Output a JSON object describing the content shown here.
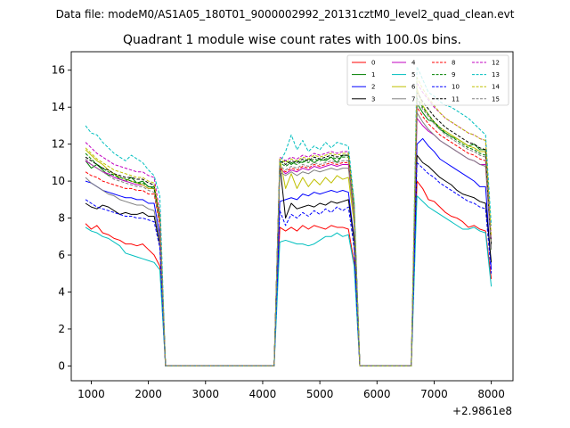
{
  "suptitle": "Data file: modeM0/AS1A05_180T01_9000002992_20131cztM0_level2_quad_clean.evt",
  "chart_data": {
    "type": "line",
    "title": "Quadrant 1 module wise count rates with 100.0s bins.",
    "xlabel": "",
    "ylabel": "",
    "offset_label": "+2.9861e8",
    "xlim": [
      650,
      8380
    ],
    "ylim": [
      -0.8,
      17.0
    ],
    "xticks": [
      1000,
      2000,
      3000,
      4000,
      5000,
      6000,
      7000,
      8000
    ],
    "yticks": [
      0,
      2,
      4,
      6,
      8,
      10,
      12,
      14,
      16
    ],
    "legend_position": "top-right",
    "legend_columns": 4,
    "segments": [
      {
        "x_start": 900,
        "x_end": 2200,
        "step": 100
      },
      {
        "x_start": 4300,
        "x_end": 5600,
        "step": 100
      },
      {
        "x_start": 6700,
        "x_end": 8000,
        "step": 100
      }
    ],
    "gaps": [
      {
        "x_start": 2300,
        "x_end": 4200,
        "value": 0
      },
      {
        "x_start": 5700,
        "x_end": 6600,
        "value": 0
      }
    ],
    "series": [
      {
        "name": "0",
        "color": "#ff0000",
        "dash": "solid",
        "segments": [
          [
            7.7,
            7.4,
            7.6,
            7.2,
            7.1,
            6.9,
            6.8,
            6.6,
            6.6,
            6.5,
            6.6,
            6.3,
            6.0,
            5.4
          ],
          [
            7.5,
            7.3,
            7.5,
            7.3,
            7.6,
            7.4,
            7.6,
            7.5,
            7.4,
            7.6,
            7.5,
            7.5,
            7.4,
            5.6
          ],
          [
            10.0,
            9.6,
            9.0,
            8.9,
            8.6,
            8.3,
            8.1,
            8.0,
            7.8,
            7.5,
            7.6,
            7.4,
            7.3,
            4.7
          ]
        ]
      },
      {
        "name": "1",
        "color": "#008000",
        "dash": "solid",
        "segments": [
          [
            11.1,
            10.7,
            10.9,
            10.6,
            10.3,
            10.4,
            10.1,
            10.0,
            10.2,
            9.9,
            10.0,
            9.7,
            9.7,
            8.0
          ],
          [
            11.0,
            11.1,
            10.9,
            11.1,
            11.0,
            11.2,
            11.0,
            11.2,
            11.1,
            11.3,
            11.0,
            11.4,
            11.4,
            8.8
          ],
          [
            14.2,
            13.7,
            13.3,
            13.2,
            12.8,
            12.6,
            12.4,
            12.3,
            12.1,
            11.9,
            12.0,
            11.7,
            11.7,
            6.3
          ]
        ]
      },
      {
        "name": "2",
        "color": "#0000ff",
        "dash": "solid",
        "segments": [
          [
            10.0,
            9.9,
            9.7,
            9.5,
            9.4,
            9.3,
            9.2,
            9.1,
            9.1,
            9.0,
            9.0,
            8.8,
            8.8,
            7.1
          ],
          [
            8.9,
            9.0,
            9.1,
            9.0,
            9.3,
            9.2,
            9.4,
            9.3,
            9.4,
            9.5,
            9.4,
            9.5,
            9.4,
            6.9
          ],
          [
            12.0,
            12.3,
            11.9,
            11.6,
            11.2,
            11.0,
            10.8,
            10.6,
            10.4,
            10.2,
            10.0,
            9.7,
            9.7,
            5.2
          ]
        ]
      },
      {
        "name": "3",
        "color": "#000000",
        "dash": "solid",
        "segments": [
          [
            8.8,
            8.6,
            8.5,
            8.7,
            8.6,
            8.4,
            8.2,
            8.3,
            8.2,
            8.2,
            8.3,
            8.1,
            8.1,
            6.6
          ],
          [
            10.9,
            8.0,
            8.8,
            8.5,
            8.6,
            8.7,
            8.6,
            8.8,
            8.7,
            8.9,
            8.8,
            8.9,
            9.0,
            6.8
          ],
          [
            11.4,
            11.0,
            10.8,
            10.5,
            10.2,
            10.0,
            9.8,
            9.5,
            9.3,
            9.2,
            9.1,
            8.9,
            8.8,
            5.6
          ]
        ]
      },
      {
        "name": "4",
        "color": "#c000c0",
        "dash": "solid",
        "segments": [
          [
            11.1,
            10.9,
            10.7,
            10.5,
            10.4,
            10.2,
            10.1,
            10.0,
            9.9,
            9.8,
            9.8,
            9.6,
            9.6,
            7.8
          ],
          [
            10.7,
            10.4,
            10.6,
            10.5,
            10.7,
            10.6,
            10.8,
            10.7,
            10.8,
            10.9,
            10.8,
            10.9,
            10.9,
            8.2
          ],
          [
            13.4,
            13.0,
            12.7,
            12.5,
            12.2,
            12.0,
            11.8,
            11.6,
            11.4,
            11.2,
            11.1,
            10.9,
            10.9,
            6.4
          ]
        ]
      },
      {
        "name": "5",
        "color": "#00bfbf",
        "dash": "solid",
        "segments": [
          [
            7.5,
            7.3,
            7.2,
            7.0,
            6.9,
            6.7,
            6.5,
            6.1,
            6.0,
            5.9,
            5.8,
            5.7,
            5.6,
            5.2
          ],
          [
            6.7,
            6.8,
            6.7,
            6.6,
            6.6,
            6.5,
            6.6,
            6.8,
            7.0,
            7.0,
            7.2,
            7.0,
            7.1,
            5.4
          ],
          [
            9.2,
            8.9,
            8.6,
            8.4,
            8.2,
            8.0,
            7.8,
            7.6,
            7.4,
            7.4,
            7.5,
            7.3,
            7.2,
            4.3
          ]
        ]
      },
      {
        "name": "6",
        "color": "#bfbf00",
        "dash": "solid",
        "segments": [
          [
            11.7,
            11.4,
            11.1,
            10.9,
            10.6,
            10.4,
            10.2,
            10.1,
            10.0,
            9.9,
            9.8,
            9.6,
            9.6,
            7.9
          ],
          [
            11.2,
            9.6,
            10.4,
            9.6,
            10.2,
            9.7,
            10.1,
            9.8,
            10.2,
            9.9,
            10.3,
            10.1,
            10.2,
            7.7
          ],
          [
            15.0,
            14.1,
            13.6,
            13.2,
            12.9,
            12.7,
            12.5,
            12.3,
            12.1,
            11.9,
            11.8,
            11.6,
            11.6,
            6.5
          ]
        ]
      },
      {
        "name": "7",
        "color": "#808080",
        "dash": "solid",
        "segments": [
          [
            10.2,
            9.9,
            9.7,
            9.5,
            9.3,
            9.2,
            9.0,
            8.9,
            8.8,
            8.7,
            8.7,
            8.5,
            8.4,
            6.8
          ],
          [
            10.5,
            10.3,
            10.5,
            10.3,
            10.5,
            10.4,
            10.6,
            10.5,
            10.6,
            10.7,
            10.6,
            10.7,
            10.7,
            8.0
          ],
          [
            13.7,
            13.2,
            12.8,
            12.5,
            12.2,
            12.0,
            11.8,
            11.6,
            11.4,
            11.2,
            11.1,
            10.9,
            10.8,
            6.3
          ]
        ]
      },
      {
        "name": "8",
        "color": "#ff0000",
        "dash": "dashed",
        "segments": [
          [
            10.5,
            10.3,
            10.2,
            10.0,
            9.9,
            9.8,
            9.7,
            9.6,
            9.6,
            9.5,
            9.5,
            9.3,
            9.3,
            7.6
          ],
          [
            10.7,
            10.5,
            10.7,
            10.6,
            10.8,
            10.7,
            10.9,
            10.8,
            10.9,
            11.0,
            10.9,
            11.0,
            11.0,
            8.3
          ],
          [
            14.0,
            13.5,
            13.1,
            12.8,
            12.5,
            12.3,
            12.1,
            11.9,
            11.7,
            11.5,
            11.4,
            11.2,
            11.1,
            6.4
          ]
        ]
      },
      {
        "name": "9",
        "color": "#008000",
        "dash": "dashed",
        "segments": [
          [
            11.5,
            11.2,
            10.9,
            10.7,
            10.5,
            10.3,
            10.2,
            10.1,
            10.0,
            9.9,
            9.9,
            9.7,
            9.6,
            7.9
          ],
          [
            11.0,
            10.8,
            11.0,
            10.9,
            11.1,
            11.0,
            11.2,
            11.1,
            11.2,
            11.3,
            11.2,
            11.3,
            11.3,
            8.5
          ],
          [
            14.5,
            14.0,
            13.6,
            13.2,
            12.9,
            12.6,
            12.4,
            12.2,
            12.0,
            11.8,
            11.7,
            11.5,
            11.4,
            6.5
          ]
        ]
      },
      {
        "name": "10",
        "color": "#0000ff",
        "dash": "dashed",
        "segments": [
          [
            9.0,
            8.8,
            8.6,
            8.5,
            8.4,
            8.3,
            8.2,
            8.1,
            8.1,
            8.0,
            8.0,
            7.9,
            7.8,
            6.4
          ],
          [
            8.4,
            7.6,
            8.2,
            8.0,
            8.3,
            8.1,
            8.4,
            8.2,
            8.5,
            8.3,
            8.6,
            8.4,
            8.6,
            6.4
          ],
          [
            11.0,
            10.7,
            10.4,
            10.2,
            9.9,
            9.7,
            9.5,
            9.3,
            9.1,
            8.9,
            8.8,
            8.6,
            8.5,
            5.0
          ]
        ]
      },
      {
        "name": "11",
        "color": "#000000",
        "dash": "dashed",
        "segments": [
          [
            11.3,
            11.1,
            10.9,
            10.7,
            10.6,
            10.4,
            10.3,
            10.2,
            10.2,
            10.1,
            10.1,
            9.9,
            9.8,
            8.0
          ],
          [
            11.1,
            10.9,
            11.1,
            11.0,
            11.2,
            11.1,
            11.3,
            11.2,
            11.3,
            11.4,
            11.3,
            11.4,
            11.4,
            8.6
          ],
          [
            14.8,
            14.3,
            13.9,
            13.5,
            13.2,
            12.9,
            12.7,
            12.5,
            12.3,
            12.1,
            12.0,
            11.8,
            11.7,
            6.6
          ]
        ]
      },
      {
        "name": "12",
        "color": "#c000c0",
        "dash": "dashed",
        "segments": [
          [
            12.1,
            11.8,
            11.5,
            11.3,
            11.1,
            10.9,
            10.8,
            10.7,
            10.6,
            10.5,
            10.5,
            10.3,
            10.2,
            8.3
          ],
          [
            11.3,
            11.1,
            11.3,
            11.2,
            11.4,
            11.3,
            11.5,
            11.4,
            11.5,
            11.6,
            11.5,
            11.6,
            11.6,
            8.7
          ],
          [
            15.3,
            14.8,
            14.4,
            14.0,
            13.7,
            13.4,
            13.2,
            13.0,
            12.8,
            12.6,
            12.5,
            12.3,
            12.2,
            6.9
          ]
        ]
      },
      {
        "name": "13",
        "color": "#00bfbf",
        "dash": "dashed",
        "segments": [
          [
            13.0,
            12.6,
            12.5,
            12.1,
            11.8,
            11.5,
            11.3,
            11.1,
            11.4,
            11.2,
            11.0,
            10.6,
            10.3,
            9.2
          ],
          [
            11.0,
            11.6,
            12.5,
            11.7,
            12.2,
            11.6,
            11.9,
            11.7,
            12.1,
            11.8,
            12.1,
            12.0,
            11.9,
            8.9
          ],
          [
            16.2,
            15.5,
            14.8,
            14.6,
            14.3,
            14.1,
            14.0,
            13.8,
            13.6,
            13.4,
            13.1,
            12.8,
            12.5,
            7.6
          ]
        ]
      },
      {
        "name": "14",
        "color": "#bfbf00",
        "dash": "dashed",
        "segments": [
          [
            11.8,
            11.5,
            11.2,
            11.0,
            10.8,
            10.6,
            10.5,
            10.4,
            10.3,
            10.2,
            10.2,
            10.0,
            9.9,
            8.1
          ],
          [
            11.2,
            11.0,
            11.2,
            11.1,
            11.3,
            11.2,
            11.4,
            11.3,
            11.4,
            11.5,
            11.4,
            11.5,
            11.5,
            8.6
          ],
          [
            15.6,
            15.0,
            14.5,
            14.1,
            13.7,
            13.4,
            13.2,
            13.0,
            12.8,
            12.6,
            12.5,
            12.3,
            12.2,
            7.0
          ]
        ]
      },
      {
        "name": "15",
        "color": "#808080",
        "dash": "dashed",
        "segments": [
          [
            11.2,
            10.9,
            10.7,
            10.5,
            10.3,
            10.1,
            10.0,
            9.9,
            9.8,
            9.7,
            9.7,
            9.5,
            9.4,
            7.7
          ],
          [
            10.8,
            10.6,
            10.8,
            10.7,
            10.9,
            10.8,
            11.0,
            10.9,
            11.0,
            11.1,
            11.0,
            11.1,
            11.1,
            8.4
          ],
          [
            14.4,
            13.9,
            13.5,
            13.1,
            12.8,
            12.5,
            12.3,
            12.1,
            11.9,
            11.7,
            11.6,
            11.4,
            11.3,
            6.4
          ]
        ]
      }
    ]
  }
}
